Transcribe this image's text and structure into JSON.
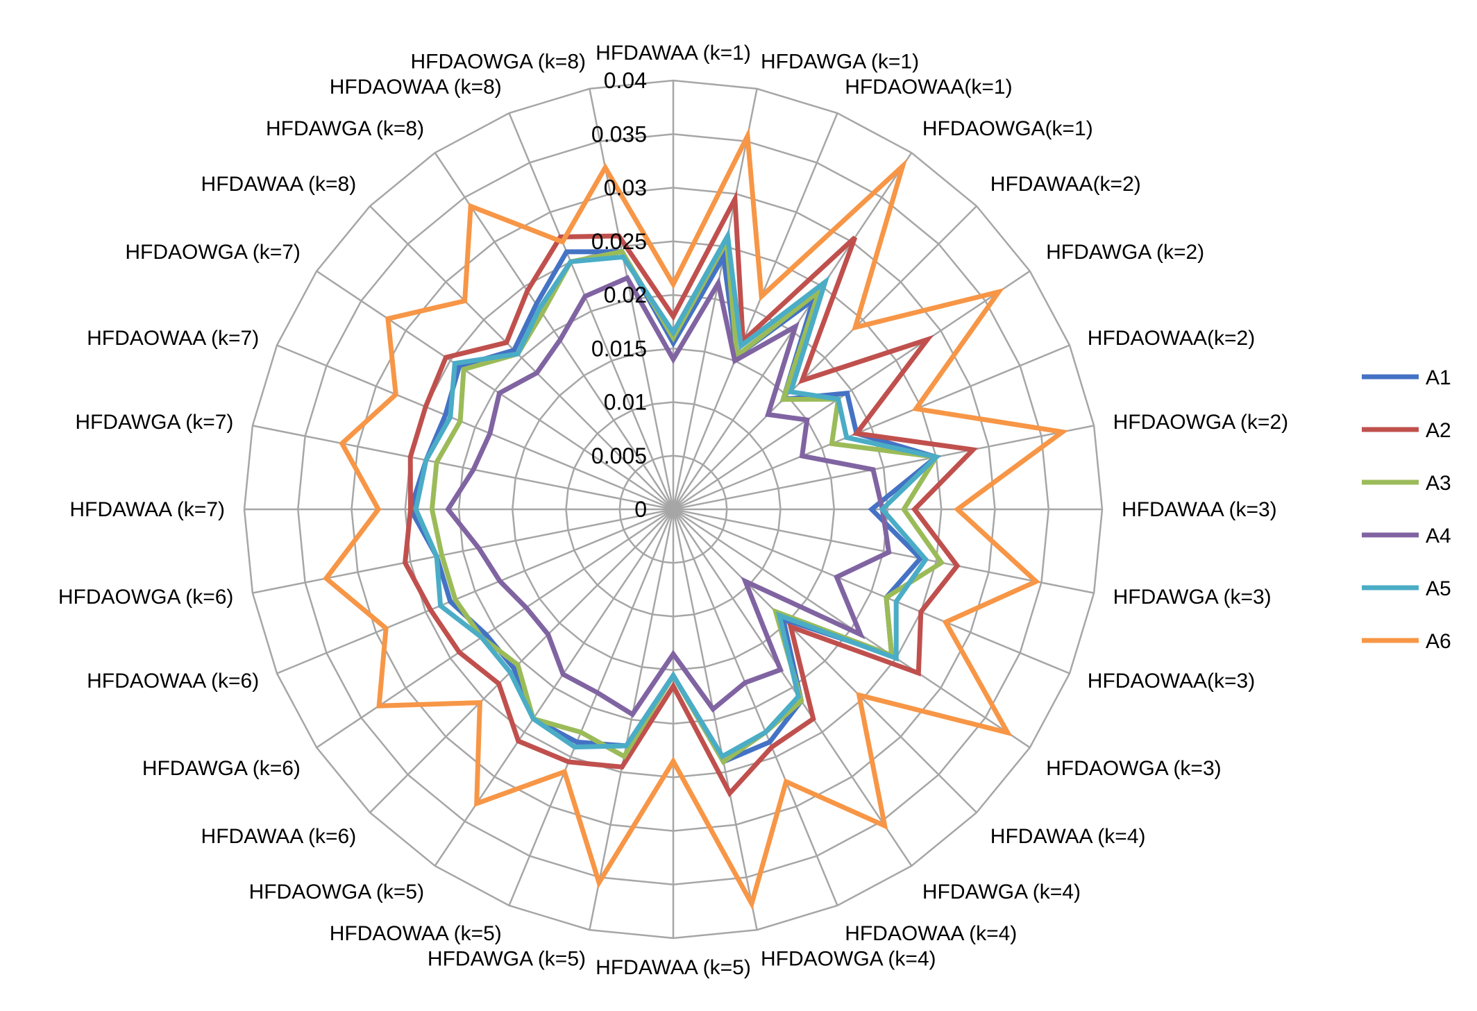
{
  "chart_data": {
    "type": "radar",
    "categories": [
      "HFDAWAA (k=1)",
      "HFDAWGA (k=1)",
      "HFDAOWAA(k=1)",
      "HFDAOWGA(k=1)",
      "HFDAWAA(k=2)",
      "HFDAWGA (k=2)",
      "HFDAOWAA(k=2)",
      "HFDAOWGA (k=2)",
      "HFDAWAA (k=3)",
      "HFDAWGA (k=3)",
      "HFDAOWAA(k=3)",
      "HFDAOWGA (k=3)",
      "HFDAWAA (k=4)",
      "HFDAWGA (k=4)",
      "HFDAOWAA (k=4)",
      "HFDAOWGA (k=4)",
      "HFDAWAA (k=5)",
      "HFDAWGA (k=5)",
      "HFDAOWAA (k=5)",
      "HFDAOWGA (k=5)",
      "HFDAWAA (k=6)",
      "HFDAWGA (k=6)",
      "HFDAOWAA (k=6)",
      "HFDAOWGA (k=6)",
      "HFDAWAA (k=7)",
      "HFDAWGA (k=7)",
      "HFDAOWAA (k=7)",
      "HFDAOWGA (k=7)",
      "HFDAWAA (k=8)",
      "HFDAWGA (k=8)",
      "HFDAOWAA (k=8)",
      "HFDAOWGA (k=8)"
    ],
    "ticks": [
      "0",
      "0.005",
      "0.01",
      "0.015",
      "0.02",
      "0.025",
      "0.03",
      "0.035",
      "0.04"
    ],
    "rlim": [
      0,
      0.04
    ],
    "grid": true,
    "legend_position": "right",
    "series": [
      {
        "name": "A1",
        "color": "#4472C4",
        "values": [
          0.0155,
          0.024,
          0.0155,
          0.0235,
          0.0145,
          0.0195,
          0.0185,
          0.025,
          0.0185,
          0.0235,
          0.0215,
          0.0245,
          0.0145,
          0.0215,
          0.0235,
          0.024,
          0.0155,
          0.0225,
          0.0235,
          0.0235,
          0.021,
          0.021,
          0.0225,
          0.0225,
          0.0245,
          0.0235,
          0.023,
          0.024,
          0.021,
          0.023,
          0.026,
          0.0245
        ]
      },
      {
        "name": "A2",
        "color": "#C0504D",
        "values": [
          0.018,
          0.0295,
          0.017,
          0.0305,
          0.017,
          0.0285,
          0.0185,
          0.0285,
          0.0225,
          0.027,
          0.025,
          0.0275,
          0.0155,
          0.0235,
          0.024,
          0.027,
          0.0165,
          0.0245,
          0.0255,
          0.026,
          0.023,
          0.024,
          0.0245,
          0.0255,
          0.0245,
          0.025,
          0.025,
          0.0255,
          0.022,
          0.0245,
          0.0275,
          0.026
        ]
      },
      {
        "name": "A3",
        "color": "#9BBB59",
        "values": [
          0.016,
          0.0255,
          0.0155,
          0.0245,
          0.0145,
          0.0185,
          0.016,
          0.025,
          0.0215,
          0.0255,
          0.0215,
          0.0245,
          0.0135,
          0.0215,
          0.0225,
          0.024,
          0.0155,
          0.0235,
          0.0225,
          0.0235,
          0.0205,
          0.0215,
          0.022,
          0.022,
          0.0225,
          0.0225,
          0.0215,
          0.0235,
          0.0205,
          0.022,
          0.025,
          0.0245
        ]
      },
      {
        "name": "A4",
        "color": "#8064A2",
        "values": [
          0.014,
          0.0215,
          0.015,
          0.0205,
          0.0125,
          0.015,
          0.013,
          0.019,
          0.0195,
          0.0205,
          0.0165,
          0.021,
          0.0095,
          0.018,
          0.0175,
          0.019,
          0.0135,
          0.0195,
          0.0185,
          0.0185,
          0.0165,
          0.0165,
          0.0175,
          0.0185,
          0.021,
          0.019,
          0.0185,
          0.0195,
          0.018,
          0.019,
          0.0215,
          0.022
        ]
      },
      {
        "name": "A5",
        "color": "#4BACC6",
        "values": [
          0.0165,
          0.026,
          0.0165,
          0.0255,
          0.0155,
          0.0185,
          0.0175,
          0.025,
          0.0195,
          0.024,
          0.0225,
          0.025,
          0.014,
          0.021,
          0.0225,
          0.0235,
          0.0155,
          0.0225,
          0.024,
          0.0235,
          0.0215,
          0.0215,
          0.0235,
          0.0225,
          0.024,
          0.0235,
          0.0225,
          0.0245,
          0.0205,
          0.0225,
          0.025,
          0.024
        ]
      },
      {
        "name": "A6",
        "color": "#F79646",
        "values": [
          0.021,
          0.0355,
          0.0215,
          0.0385,
          0.024,
          0.0365,
          0.0245,
          0.037,
          0.0265,
          0.0345,
          0.0275,
          0.0375,
          0.0245,
          0.0355,
          0.0275,
          0.0375,
          0.0235,
          0.0355,
          0.0265,
          0.033,
          0.0255,
          0.033,
          0.029,
          0.033,
          0.0275,
          0.0315,
          0.028,
          0.032,
          0.0275,
          0.034,
          0.027,
          0.0325
        ]
      }
    ]
  }
}
